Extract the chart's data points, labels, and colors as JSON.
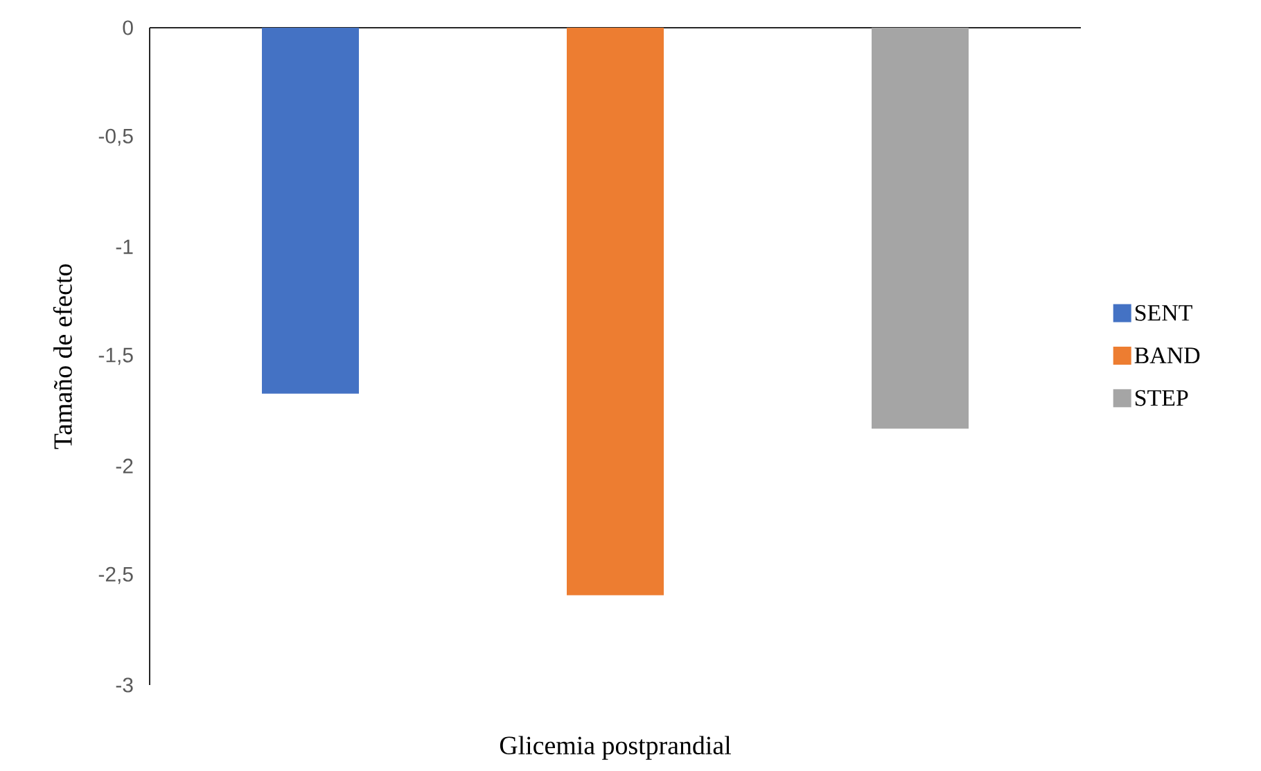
{
  "chart_data": {
    "type": "bar",
    "categories": [
      null
    ],
    "xlabel": "Glicemia postprandial",
    "ylabel": "Tamaño de efecto",
    "ylim": [
      -3,
      0
    ],
    "yticks": [
      0,
      {
        "value": -0.5,
        "label": "-0,5"
      },
      -1,
      {
        "value": -1.5,
        "label": "-1,5"
      },
      -2,
      {
        "value": -2.5,
        "label": "-2,5"
      },
      -3
    ],
    "legend": "right",
    "series": [
      {
        "name": "SENT",
        "color": "#4472c4",
        "values": [
          -1.67
        ]
      },
      {
        "name": "BAND",
        "color": "#ed7d31",
        "values": [
          -2.59
        ]
      },
      {
        "name": "STEP",
        "color": "#a5a5a5",
        "values": [
          -1.83
        ]
      }
    ]
  }
}
